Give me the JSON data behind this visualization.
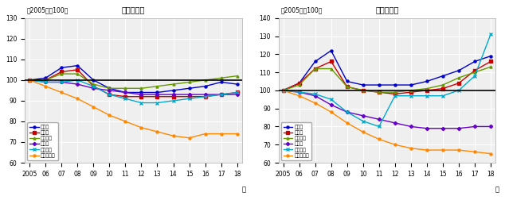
{
  "years": [
    2005,
    2006,
    2007,
    2008,
    2009,
    2010,
    2011,
    2012,
    2013,
    2014,
    2015,
    2016,
    2017,
    2018
  ],
  "residential": {
    "tokyo": [
      100,
      101,
      106,
      107,
      100,
      96,
      94,
      94,
      94,
      95,
      96,
      97,
      99,
      98
    ],
    "osaka": [
      100,
      100,
      104,
      105,
      97,
      93,
      92,
      92,
      92,
      92,
      92,
      92,
      93,
      94
    ],
    "nagoya": [
      100,
      100,
      103,
      103,
      98,
      96,
      96,
      96,
      97,
      98,
      99,
      100,
      101,
      102
    ],
    "chiho": [
      100,
      99,
      99,
      98,
      96,
      95,
      94,
      93,
      93,
      93,
      93,
      93,
      93,
      93
    ],
    "chiho_shi": [
      100,
      99,
      99,
      100,
      97,
      93,
      91,
      89,
      89,
      90,
      91,
      92,
      93,
      94
    ],
    "chiho_other": [
      100,
      97,
      94,
      91,
      87,
      83,
      80,
      77,
      75,
      73,
      72,
      74,
      74,
      74
    ]
  },
  "commercial": {
    "tokyo": [
      100,
      104,
      116,
      122,
      105,
      103,
      103,
      103,
      103,
      105,
      108,
      111,
      116,
      119
    ],
    "osaka": [
      100,
      104,
      112,
      116,
      102,
      100,
      99,
      98,
      99,
      100,
      101,
      104,
      111,
      116
    ],
    "nagoya": [
      100,
      103,
      112,
      112,
      102,
      100,
      99,
      99,
      100,
      101,
      103,
      107,
      110,
      113
    ],
    "chiho": [
      100,
      99,
      97,
      92,
      88,
      86,
      84,
      82,
      80,
      79,
      79,
      79,
      80,
      80
    ],
    "chiho_shi": [
      100,
      99,
      98,
      95,
      88,
      83,
      80,
      97,
      97,
      97,
      97,
      100,
      108,
      131
    ],
    "chiho_other": [
      100,
      97,
      93,
      88,
      82,
      77,
      73,
      70,
      68,
      67,
      67,
      67,
      66,
      65
    ]
  },
  "colors": {
    "tokyo": "#0000cc",
    "osaka": "#cc0000",
    "nagoya": "#669900",
    "chiho": "#6600cc",
    "chiho_shi": "#00aacc",
    "chiho_other": "#ff8800"
  },
  "markers": {
    "tokyo": "o",
    "osaka": "s",
    "nagoya": "^",
    "chiho": "D",
    "chiho_shi": "x",
    "chiho_other": "o"
  },
  "legend_labels": {
    "tokyo": "東京圈",
    "osaka": "大阪圈",
    "nagoya": "名古屋圈",
    "chiho": "地方圈",
    "chiho_shi": "地方四市",
    "chiho_other": "地方その他"
  },
  "residential_title": "（住宅地）",
  "commercial_title": "（商業地）",
  "subtitle": "（2005年＝100）",
  "ylim_residential": [
    60,
    130
  ],
  "ylim_commercial": [
    60,
    140
  ],
  "yticks_residential": [
    60,
    70,
    80,
    90,
    100,
    110,
    120,
    130
  ],
  "yticks_commercial": [
    60,
    70,
    80,
    90,
    100,
    110,
    120,
    130,
    140
  ],
  "bg_color": "#efefef",
  "grid_color": "#ffffff"
}
